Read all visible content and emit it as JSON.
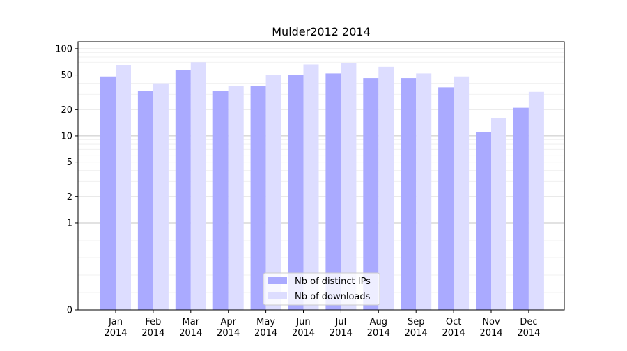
{
  "chart_data": {
    "type": "bar",
    "title": "Mulder2012 2014",
    "xlabel": "",
    "ylabel": "",
    "y_scale": "symlog",
    "y_ticks": [
      0,
      1,
      2,
      5,
      10,
      20,
      50,
      100
    ],
    "ylim": [
      0,
      120
    ],
    "grid": "horizontal",
    "legend_position": "bottom-center",
    "categories": [
      [
        "Jan",
        "2014"
      ],
      [
        "Feb",
        "2014"
      ],
      [
        "Mar",
        "2014"
      ],
      [
        "Apr",
        "2014"
      ],
      [
        "May",
        "2014"
      ],
      [
        "Jun",
        "2014"
      ],
      [
        "Jul",
        "2014"
      ],
      [
        "Aug",
        "2014"
      ],
      [
        "Sep",
        "2014"
      ],
      [
        "Oct",
        "2014"
      ],
      [
        "Nov",
        "2014"
      ],
      [
        "Dec",
        "2014"
      ]
    ],
    "series": [
      {
        "name": "Nb of distinct IPs",
        "color": "#aaaaff",
        "values": [
          48,
          33,
          57,
          33,
          37,
          50,
          52,
          46,
          46,
          36,
          11,
          21
        ]
      },
      {
        "name": "Nb of downloads",
        "color": "#ddddff",
        "values": [
          65,
          40,
          70,
          37,
          50,
          66,
          69,
          62,
          52,
          48,
          16,
          32
        ]
      }
    ]
  }
}
